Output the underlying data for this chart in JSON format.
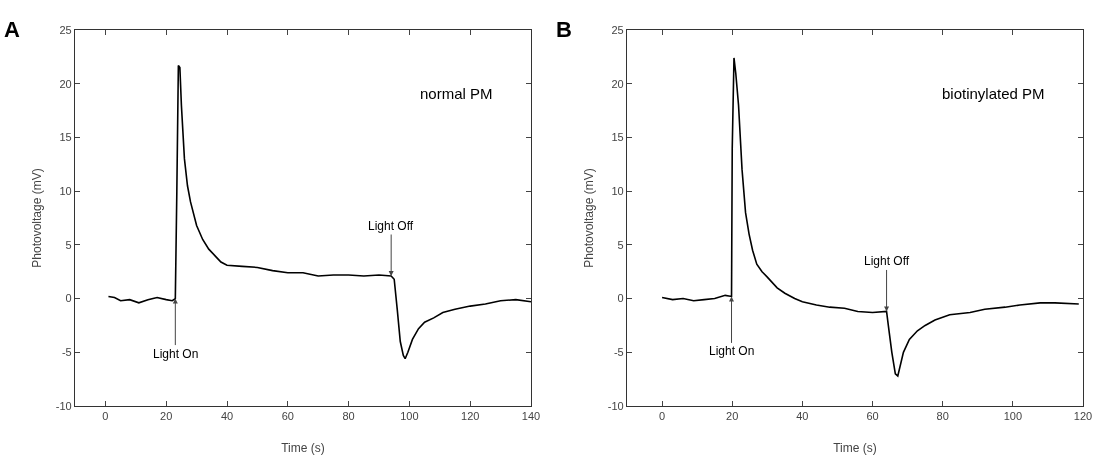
{
  "chart_data": [
    {
      "type": "line",
      "title": "A",
      "xlabel": "Time (s)",
      "ylabel": "Photovoltage (mV)",
      "annotations": [
        "normal PM",
        {
          "text": "Light On",
          "x": 23,
          "y": 0
        },
        {
          "text": "Light Off",
          "x": 94,
          "y": 2.1
        }
      ],
      "x": [
        1,
        3,
        5,
        8,
        11,
        14,
        17,
        20,
        22,
        23,
        23.5,
        24,
        24.5,
        25,
        26,
        27,
        28,
        30,
        32,
        34,
        36,
        38,
        40,
        45,
        50,
        55,
        60,
        65,
        70,
        75,
        80,
        85,
        90,
        94,
        95,
        96,
        97,
        98,
        98.6,
        99.5,
        101,
        103,
        105,
        108,
        111,
        115,
        120,
        125,
        130,
        135,
        140
      ],
      "series": [
        {
          "color": "#000000",
          "values": [
            0.2,
            0.1,
            -0.2,
            -0.1,
            -0.4,
            -0.1,
            0.1,
            -0.1,
            -0.2,
            0,
            10,
            21.7,
            21.5,
            18,
            13,
            10.5,
            9,
            6.8,
            5.5,
            4.6,
            4,
            3.4,
            3.1,
            3,
            2.9,
            2.6,
            2.4,
            2.4,
            2.1,
            2.2,
            2.2,
            2.1,
            2.2,
            2.1,
            1.8,
            -1,
            -4,
            -5.3,
            -5.6,
            -5,
            -3.8,
            -2.8,
            -2.2,
            -1.8,
            -1.3,
            -1,
            -0.7,
            -0.5,
            -0.2,
            -0.1,
            -0.3
          ]
        }
      ],
      "xlim": [
        -10,
        140
      ],
      "ylim": [
        -10,
        25
      ],
      "xticks": [
        0,
        20,
        40,
        60,
        80,
        100,
        120,
        140
      ],
      "yticks": [
        -10,
        -5,
        0,
        5,
        10,
        15,
        20,
        25
      ],
      "grid": false,
      "marker": "none",
      "line_style": "solid"
    },
    {
      "type": "line",
      "title": "B",
      "xlabel": "Time (s)",
      "ylabel": "Photovoltage (mV)",
      "annotations": [
        "biotinylated PM",
        {
          "text": "Light On",
          "x": 19.8,
          "y": 0.2
        },
        {
          "text": "Light Off",
          "x": 64,
          "y": -1.2
        }
      ],
      "x": [
        0,
        3,
        6,
        9,
        12,
        15,
        18,
        19.8,
        20,
        20.5,
        21,
        21.8,
        22.8,
        23.8,
        24.8,
        25.8,
        27,
        28.5,
        30,
        32.8,
        35,
        37.8,
        40,
        44,
        47.8,
        52,
        55.8,
        60,
        64,
        64.5,
        65.5,
        66.5,
        67.2,
        68.8,
        70.5,
        72.8,
        75,
        77.8,
        82,
        87.8,
        92,
        97.8,
        102,
        107.8,
        112,
        118.8
      ],
      "series": [
        {
          "color": "#000000",
          "values": [
            0.1,
            -0.1,
            0,
            -0.2,
            -0.1,
            0,
            0.3,
            0.2,
            14,
            22.4,
            21,
            18,
            12,
            8,
            6,
            4.5,
            3.2,
            2.5,
            2,
            1,
            0.5,
            0,
            -0.3,
            -0.6,
            -0.8,
            -0.9,
            -1.2,
            -1.3,
            -1.2,
            -2.5,
            -5,
            -7,
            -7.2,
            -5,
            -3.8,
            -3,
            -2.5,
            -2,
            -1.5,
            -1.3,
            -1,
            -0.8,
            -0.6,
            -0.4,
            -0.4,
            -0.5
          ]
        }
      ],
      "xlim": [
        -10,
        120
      ],
      "ylim": [
        -10,
        25
      ],
      "xticks": [
        0,
        20,
        40,
        60,
        80,
        100,
        120
      ],
      "yticks": [
        -10,
        -5,
        0,
        5,
        10,
        15,
        20,
        25
      ],
      "grid": false,
      "marker": "none",
      "line_style": "solid"
    }
  ]
}
